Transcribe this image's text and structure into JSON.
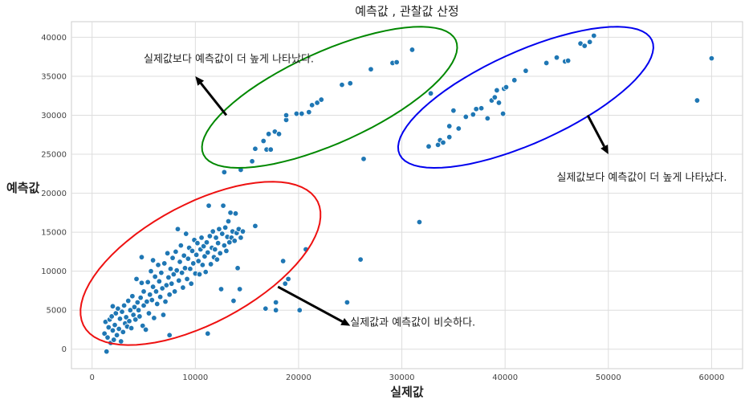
{
  "colors": {
    "points": "#1f77b4",
    "ellipse_red": "#ee1111",
    "ellipse_green": "#008800",
    "ellipse_blue": "#0000ee",
    "arrow": "#000000"
  },
  "chart_data": {
    "type": "scatter",
    "title": "예측값 , 관찰값 산정",
    "xlabel": "실제값",
    "ylabel": "예측값",
    "xlim": [
      -2000,
      63000
    ],
    "ylim": [
      -2500,
      42000
    ],
    "xticks": [
      0,
      10000,
      20000,
      30000,
      40000,
      50000,
      60000
    ],
    "yticks": [
      0,
      5000,
      10000,
      15000,
      20000,
      25000,
      30000,
      35000,
      40000
    ],
    "grid": true,
    "points": [
      [
        1200,
        2000
      ],
      [
        1300,
        3500
      ],
      [
        1400,
        -300
      ],
      [
        1500,
        1500
      ],
      [
        1600,
        2800
      ],
      [
        1700,
        3800
      ],
      [
        1800,
        800
      ],
      [
        1900,
        4200
      ],
      [
        2000,
        2400
      ],
      [
        2000,
        5500
      ],
      [
        2100,
        1200
      ],
      [
        2200,
        3100
      ],
      [
        2300,
        4600
      ],
      [
        2400,
        1800
      ],
      [
        2500,
        5200
      ],
      [
        2600,
        2600
      ],
      [
        2700,
        3900
      ],
      [
        2800,
        1000
      ],
      [
        2900,
        4800
      ],
      [
        3000,
        2200
      ],
      [
        3100,
        5600
      ],
      [
        3200,
        3300
      ],
      [
        3300,
        4100
      ],
      [
        3400,
        2900
      ],
      [
        3500,
        6200
      ],
      [
        3600,
        3600
      ],
      [
        3700,
        5000
      ],
      [
        3800,
        2700
      ],
      [
        3900,
        6800
      ],
      [
        4000,
        4400
      ],
      [
        4100,
        5400
      ],
      [
        4200,
        3800
      ],
      [
        4300,
        9000
      ],
      [
        4400,
        6000
      ],
      [
        4500,
        5000
      ],
      [
        4600,
        4200
      ],
      [
        4700,
        6600
      ],
      [
        4800,
        8500
      ],
      [
        4800,
        11800
      ],
      [
        4900,
        3000
      ],
      [
        5000,
        5600
      ],
      [
        5000,
        7400
      ],
      [
        5200,
        2500
      ],
      [
        5300,
        6100
      ],
      [
        5400,
        8600
      ],
      [
        5500,
        4600
      ],
      [
        5600,
        7000
      ],
      [
        5700,
        10000
      ],
      [
        5800,
        6300
      ],
      [
        5900,
        11400
      ],
      [
        5900,
        8000
      ],
      [
        6000,
        4000
      ],
      [
        6100,
        9300
      ],
      [
        6200,
        7400
      ],
      [
        6300,
        5800
      ],
      [
        6400,
        10800
      ],
      [
        6500,
        8700
      ],
      [
        6600,
        6700
      ],
      [
        6700,
        9800
      ],
      [
        6800,
        7800
      ],
      [
        6900,
        4400
      ],
      [
        7000,
        11000
      ],
      [
        7100,
        6100
      ],
      [
        7200,
        8200
      ],
      [
        7300,
        12300
      ],
      [
        7400,
        9200
      ],
      [
        7500,
        1800
      ],
      [
        7500,
        7000
      ],
      [
        7600,
        10300
      ],
      [
        7700,
        8400
      ],
      [
        7800,
        11700
      ],
      [
        7900,
        9600
      ],
      [
        8000,
        7400
      ],
      [
        8100,
        12500
      ],
      [
        8200,
        10100
      ],
      [
        8300,
        15400
      ],
      [
        8400,
        8800
      ],
      [
        8500,
        11200
      ],
      [
        8600,
        13300
      ],
      [
        8700,
        9800
      ],
      [
        8800,
        7900
      ],
      [
        8900,
        12000
      ],
      [
        9000,
        10400
      ],
      [
        9100,
        14800
      ],
      [
        9200,
        9000
      ],
      [
        9300,
        11600
      ],
      [
        9400,
        13000
      ],
      [
        9500,
        10300
      ],
      [
        9600,
        8400
      ],
      [
        9700,
        12600
      ],
      [
        9800,
        11000
      ],
      [
        9900,
        14000
      ],
      [
        10000,
        9700
      ],
      [
        10100,
        12100
      ],
      [
        10200,
        13600
      ],
      [
        10300,
        11300
      ],
      [
        10400,
        9600
      ],
      [
        10500,
        12800
      ],
      [
        10600,
        14300
      ],
      [
        10700,
        10800
      ],
      [
        10800,
        13200
      ],
      [
        10900,
        11900
      ],
      [
        11000,
        9900
      ],
      [
        11100,
        13700
      ],
      [
        11200,
        2000
      ],
      [
        11200,
        12400
      ],
      [
        11300,
        18400
      ],
      [
        11400,
        14500
      ],
      [
        11500,
        10900
      ],
      [
        11600,
        13000
      ],
      [
        11700,
        15100
      ],
      [
        11800,
        11800
      ],
      [
        11900,
        12800
      ],
      [
        12000,
        14300
      ],
      [
        12100,
        11500
      ],
      [
        12200,
        13600
      ],
      [
        12300,
        15400
      ],
      [
        12400,
        12300
      ],
      [
        12500,
        7700
      ],
      [
        12600,
        14800
      ],
      [
        12700,
        18400
      ],
      [
        12800,
        13300
      ],
      [
        12900,
        15600
      ],
      [
        13000,
        12600
      ],
      [
        13100,
        14400
      ],
      [
        13200,
        16400
      ],
      [
        13300,
        13700
      ],
      [
        13400,
        17500
      ],
      [
        13500,
        14300
      ],
      [
        13600,
        15100
      ],
      [
        13700,
        6200
      ],
      [
        13800,
        13900
      ],
      [
        13900,
        17400
      ],
      [
        14000,
        14900
      ],
      [
        14100,
        10400
      ],
      [
        14200,
        15400
      ],
      [
        14300,
        7700
      ],
      [
        14400,
        14300
      ],
      [
        14600,
        15100
      ],
      [
        15800,
        15800
      ],
      [
        16800,
        5200
      ],
      [
        17800,
        5000
      ],
      [
        17800,
        6000
      ],
      [
        18500,
        11300
      ],
      [
        18700,
        8400
      ],
      [
        19000,
        9000
      ],
      [
        20100,
        5000
      ],
      [
        20700,
        12800
      ],
      [
        24700,
        6000
      ],
      [
        26000,
        11500
      ],
      [
        12800,
        22700
      ],
      [
        14400,
        23000
      ],
      [
        15500,
        24100
      ],
      [
        15800,
        25700
      ],
      [
        16600,
        26700
      ],
      [
        16900,
        25600
      ],
      [
        17100,
        27600
      ],
      [
        17300,
        25600
      ],
      [
        17700,
        27900
      ],
      [
        18100,
        27600
      ],
      [
        18800,
        29400
      ],
      [
        18800,
        30000
      ],
      [
        19800,
        30200
      ],
      [
        20300,
        30200
      ],
      [
        21000,
        30400
      ],
      [
        21300,
        31300
      ],
      [
        21800,
        31600
      ],
      [
        22200,
        32000
      ],
      [
        24200,
        33900
      ],
      [
        25000,
        34100
      ],
      [
        26300,
        24400
      ],
      [
        27000,
        35900
      ],
      [
        29100,
        36700
      ],
      [
        29500,
        36800
      ],
      [
        31000,
        38400
      ],
      [
        31700,
        16300
      ],
      [
        32800,
        32800
      ],
      [
        32600,
        26000
      ],
      [
        33500,
        26200
      ],
      [
        33700,
        26800
      ],
      [
        34000,
        26500
      ],
      [
        34600,
        27200
      ],
      [
        34600,
        28600
      ],
      [
        35000,
        30600
      ],
      [
        35500,
        28300
      ],
      [
        36200,
        29800
      ],
      [
        36900,
        30100
      ],
      [
        37200,
        30800
      ],
      [
        37700,
        30900
      ],
      [
        38300,
        29600
      ],
      [
        38700,
        31900
      ],
      [
        39000,
        32300
      ],
      [
        39200,
        33200
      ],
      [
        39400,
        31600
      ],
      [
        39800,
        30200
      ],
      [
        39900,
        33400
      ],
      [
        40100,
        33600
      ],
      [
        40900,
        34500
      ],
      [
        42000,
        35700
      ],
      [
        44000,
        36700
      ],
      [
        45000,
        37400
      ],
      [
        45800,
        36900
      ],
      [
        46100,
        37000
      ],
      [
        47300,
        39200
      ],
      [
        47700,
        38900
      ],
      [
        48200,
        39400
      ],
      [
        48600,
        40200
      ],
      [
        58600,
        31900
      ],
      [
        60000,
        37300
      ]
    ],
    "annotations": [
      {
        "text": "실제값보다 예측값이 더 높게 나타났다.",
        "x": 5000,
        "y": 37200,
        "arrow_from": [
          13000,
          30000
        ],
        "arrow_to": [
          10000,
          35000
        ]
      },
      {
        "text": "실제값보다 예측값이 더 높게 나타났다.",
        "x": 45000,
        "y": 22000,
        "arrow_from": [
          48000,
          30000
        ],
        "arrow_to": [
          50000,
          25000
        ]
      },
      {
        "text": "실제값과 예측값이 비슷하다.",
        "x": 25000,
        "y": 3400,
        "arrow_from": [
          18000,
          8000
        ],
        "arrow_to": [
          25000,
          3000
        ]
      }
    ],
    "ellipses": [
      {
        "color": "red",
        "cx": 10500,
        "cy": 11000,
        "rx": 14000,
        "ry": 7000,
        "angle": 40
      },
      {
        "color": "green",
        "cx": 23000,
        "cy": 32300,
        "rx": 14300,
        "ry": 5500,
        "angle": 33
      },
      {
        "color": "blue",
        "cx": 42000,
        "cy": 32300,
        "rx": 14300,
        "ry": 5500,
        "angle": 33
      }
    ]
  }
}
